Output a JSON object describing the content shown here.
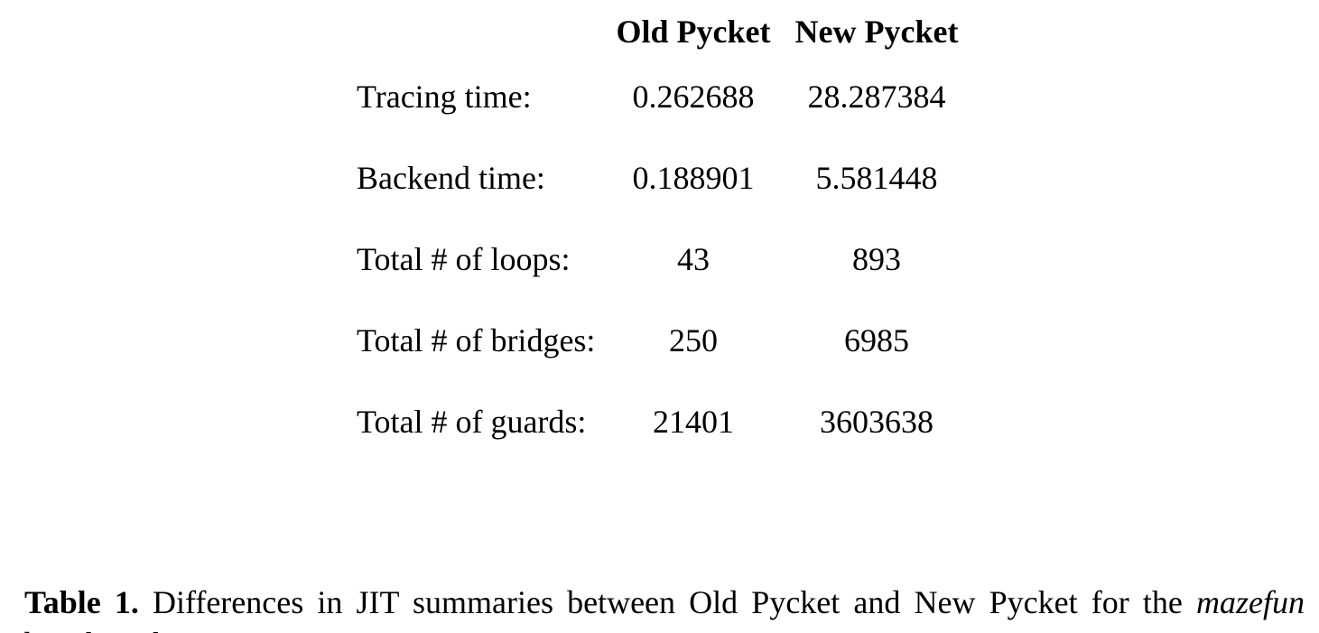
{
  "table": {
    "headers": [
      "",
      "Old Pycket",
      "New Pycket"
    ],
    "rows": [
      {
        "label": "Tracing time:",
        "old": "0.262688",
        "new": "28.287384"
      },
      {
        "label": "Backend time:",
        "old": "0.188901",
        "new": "5.581448"
      },
      {
        "label": "Total # of loops:",
        "old": "43",
        "new": "893"
      },
      {
        "label": "Total # of bridges:",
        "old": "250",
        "new": "6985"
      },
      {
        "label": "Total # of guards:",
        "old": "21401",
        "new": "3603638"
      }
    ]
  },
  "caption": {
    "label": "Table 1.",
    "text_before": " Differences in JIT summaries between Old Pycket and New Pycket for the ",
    "emphasis": "mazefun",
    "text_after": " benchmark"
  }
}
